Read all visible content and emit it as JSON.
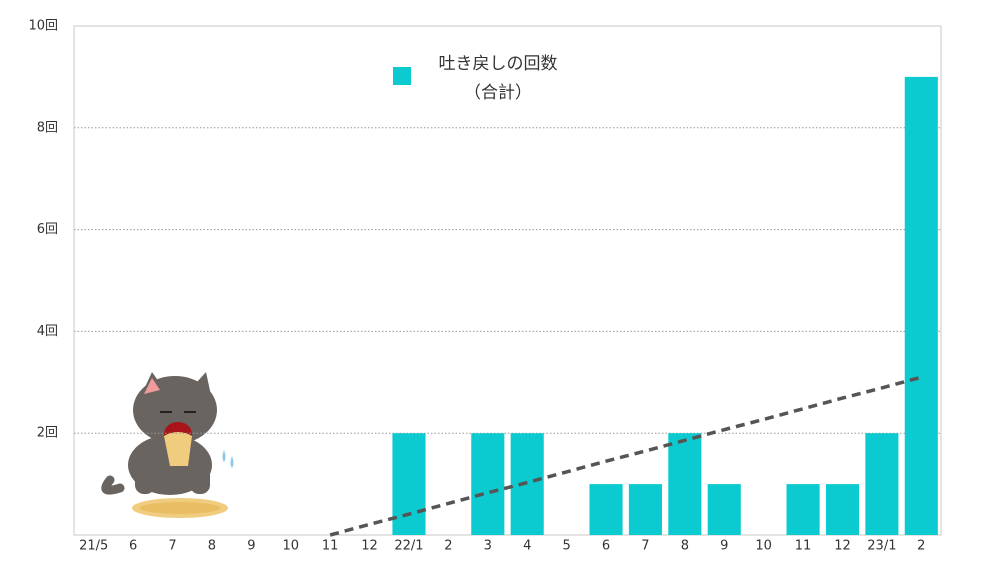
{
  "chart_data": {
    "type": "bar",
    "categories": [
      "21/5",
      "6",
      "7",
      "8",
      "9",
      "10",
      "11",
      "12",
      "22/1",
      "2",
      "3",
      "4",
      "5",
      "6",
      "7",
      "8",
      "9",
      "10",
      "11",
      "12",
      "23/1",
      "2"
    ],
    "series": [
      {
        "name": "吐き戻しの回数（合計）",
        "color": "#0bcbd0",
        "values": [
          0,
          0,
          0,
          0,
          0,
          0,
          0,
          0,
          2,
          0,
          2,
          2,
          0,
          1,
          1,
          2,
          1,
          0,
          1,
          1,
          2,
          9
        ]
      }
    ],
    "trend": {
      "color": "#555555",
      "style": "dashed",
      "values": [
        null,
        null,
        null,
        null,
        null,
        null,
        0,
        0.21,
        0.41,
        0.62,
        0.83,
        1.03,
        1.24,
        1.45,
        1.65,
        1.86,
        2.07,
        2.27,
        2.48,
        2.69,
        2.89,
        3.1
      ]
    },
    "ylim": [
      0,
      10
    ],
    "yticks": [
      {
        "value": 2,
        "label": "2回"
      },
      {
        "value": 4,
        "label": "4回"
      },
      {
        "value": 6,
        "label": "6回"
      },
      {
        "value": 8,
        "label": "8回"
      },
      {
        "value": 10,
        "label": "10回"
      }
    ],
    "grid": true
  }
}
